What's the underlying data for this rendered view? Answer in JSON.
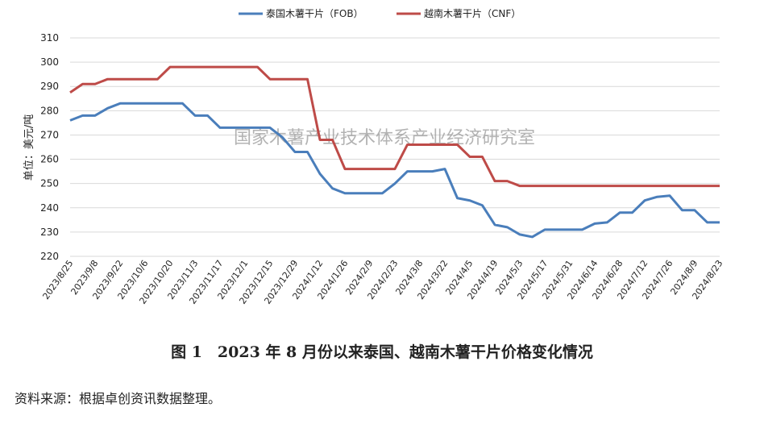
{
  "chart_data": {
    "type": "line",
    "y_axis_label": "单位：美元/吨",
    "watermark": "国家木薯产业技术体系产业经济研究室",
    "caption": "图 1　2023 年 8 月份以来泰国、越南木薯干片价格变化情况",
    "source": "资料来源：根据卓创资讯数据整理。",
    "categories": [
      "2023/8/25",
      null,
      "2023/9/8",
      null,
      "2023/9/22",
      null,
      "2023/10/6",
      null,
      "2023/10/20",
      null,
      "2023/11/3",
      null,
      "2023/11/17",
      null,
      "2023/12/1",
      null,
      "2023/12/15",
      null,
      "2023/12/29",
      null,
      "2024/1/12",
      null,
      "2024/1/26",
      null,
      "2024/2/9",
      null,
      "2024/2/23",
      null,
      "2024/3/8",
      null,
      "2024/3/22",
      null,
      "2024/4/5",
      null,
      "2024/4/19",
      null,
      "2024/5/3",
      null,
      "2024/5/17",
      null,
      "2024/5/31",
      null,
      "2024/6/14",
      null,
      "2024/6/28",
      null,
      "2024/7/12",
      null,
      "2024/7/26",
      null,
      "2024/8/9",
      null,
      "2024/8/23"
    ],
    "series": [
      {
        "name": "泰国木薯干片（FOB）",
        "color": "#4a7ebb",
        "values": [
          276,
          278,
          278,
          281,
          283,
          283,
          283,
          283,
          283,
          283,
          278,
          278,
          273,
          273,
          273,
          273,
          273,
          269,
          263,
          263,
          254,
          248,
          246,
          246,
          246,
          246,
          250,
          255,
          255,
          255,
          256,
          244,
          243,
          241,
          233,
          232,
          229,
          228,
          231,
          231,
          231,
          231,
          233.5,
          234,
          238,
          238,
          243,
          244.5,
          245,
          239,
          239,
          234,
          234
        ]
      },
      {
        "name": "越南木薯干片（CNF）",
        "color": "#be4b48",
        "values": [
          287.5,
          291,
          291,
          293,
          293,
          293,
          293,
          293,
          298,
          298,
          298,
          298,
          298,
          298,
          298,
          298,
          293,
          293,
          293,
          293,
          268,
          268,
          256,
          256,
          256,
          256,
          256,
          266,
          266,
          266,
          266,
          266,
          261,
          261,
          251,
          251,
          249,
          249,
          249,
          249,
          249,
          249,
          249,
          249,
          249,
          249,
          249,
          249,
          249,
          249,
          249,
          249,
          249
        ]
      }
    ],
    "ylim": [
      220,
      310
    ],
    "yticks": [
      220,
      230,
      240,
      250,
      260,
      270,
      280,
      290,
      300,
      310
    ],
    "grid": true,
    "legend": "top"
  }
}
